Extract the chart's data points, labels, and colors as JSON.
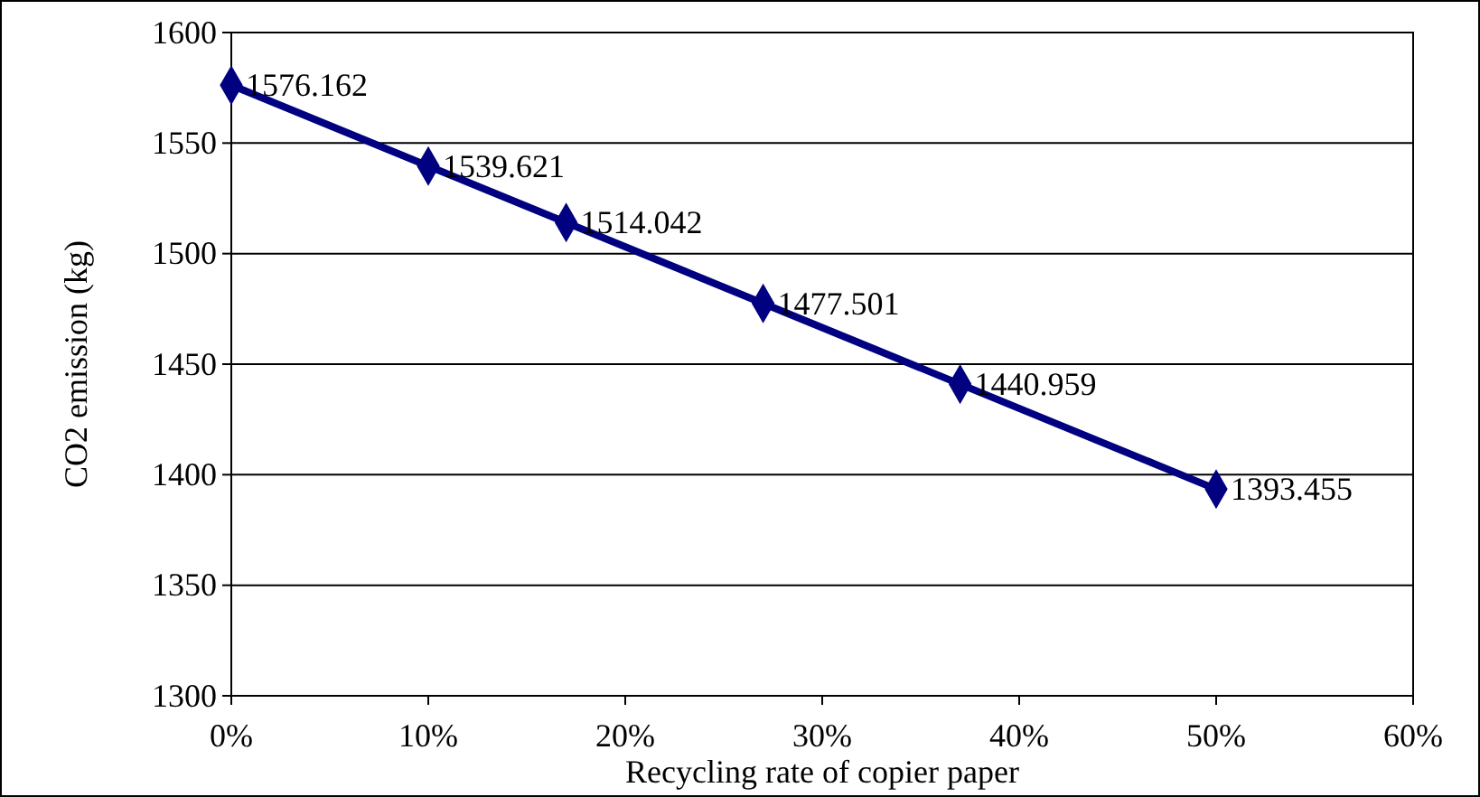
{
  "chart_data": {
    "type": "line",
    "xlabel": "Recycling rate of copier paper",
    "ylabel": "CO2 emission (kg)",
    "x": [
      0,
      10,
      17,
      27,
      37,
      50
    ],
    "series": [
      {
        "color": "#000080",
        "values": [
          1576.162,
          1539.621,
          1514.042,
          1477.501,
          1440.959,
          1393.455
        ]
      }
    ],
    "xlim": [
      0,
      60
    ],
    "xticks": [
      {
        "value": 0,
        "label": "0%"
      },
      {
        "value": 10,
        "label": "10%"
      },
      {
        "value": 20,
        "label": "20%"
      },
      {
        "value": 30,
        "label": "30%"
      },
      {
        "value": 40,
        "label": "40%"
      },
      {
        "value": 50,
        "label": "50%"
      },
      {
        "value": 60,
        "label": "60%"
      }
    ],
    "ylim": [
      1300,
      1600
    ],
    "yticks": [
      1300,
      1350,
      1400,
      1450,
      1500,
      1550,
      1600
    ],
    "grid": "y",
    "marker": "diamond",
    "line_style": "solid",
    "data_labels": true
  }
}
